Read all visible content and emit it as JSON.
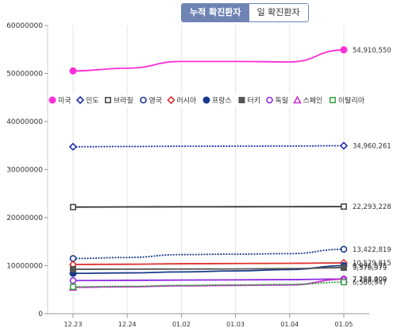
{
  "tabs": {
    "cumulative": "누적 확진환자",
    "daily": "일 확진환자"
  },
  "chart_data": {
    "type": "line",
    "title": "",
    "xlabel": "",
    "ylabel": "",
    "ylim": [
      0,
      60000000
    ],
    "yticks": [
      "0",
      "10000000",
      "20000000",
      "30000000",
      "40000000",
      "50000000",
      "60000000"
    ],
    "x": [
      "12.23",
      "12.24",
      "01.02",
      "01.03",
      "01.04",
      "01.05"
    ],
    "grid": "vertical",
    "legend": "inside-top",
    "series": [
      {
        "name": "미국",
        "color": "#ff2ed6",
        "marker": "filled-circle",
        "dash": "solid",
        "values": [
          50530000,
          51100000,
          52500000,
          52500000,
          52400000,
          54910550
        ],
        "end_label": "54,910,550"
      },
      {
        "name": "인도",
        "color": "#1f2fb0",
        "marker": "hollow-diamond",
        "dash": "dotted",
        "values": [
          34750000,
          34800000,
          34850000,
          34870000,
          34900000,
          34960261
        ],
        "end_label": "34,960,261"
      },
      {
        "name": "브라질",
        "color": "#333333",
        "marker": "hollow-square",
        "dash": "solid",
        "values": [
          22200000,
          22230000,
          22250000,
          22260000,
          22275000,
          22293228
        ],
        "end_label": "22,293,228"
      },
      {
        "name": "영국",
        "color": "#1a3a8a",
        "marker": "hollow-circle",
        "dash": "dotted",
        "values": [
          11500000,
          11700000,
          12300000,
          12400000,
          12500000,
          13422819
        ],
        "end_label": "13,422,819"
      },
      {
        "name": "러시아",
        "color": "#e03030",
        "marker": "hollow-diamond",
        "dash": "solid",
        "values": [
          10250000,
          10300000,
          10400000,
          10450000,
          10500000,
          10579815
        ],
        "end_label": "10,579,815"
      },
      {
        "name": "프랑스",
        "color": "#1a3a8a",
        "marker": "filled-circle",
        "dash": "solid",
        "values": [
          8400000,
          8500000,
          8700000,
          8900000,
          9200000,
          9996575
        ],
        "end_label": "9,996,575"
      },
      {
        "name": "터키",
        "color": "#555555",
        "marker": "filled-square",
        "dash": "solid",
        "values": [
          9250000,
          9280000,
          9300000,
          9320000,
          9400000,
          9576979
        ],
        "end_label": "9,576,979"
      },
      {
        "name": "독일",
        "color": "#8a2be2",
        "marker": "hollow-circle",
        "dash": "solid",
        "values": [
          6900000,
          6950000,
          7000000,
          7050000,
          7100000,
          7228409
        ],
        "end_label": "7,228,409"
      },
      {
        "name": "스페인",
        "color": "#cc33cc",
        "marker": "hollow-triangle",
        "dash": "solid",
        "values": [
          5500000,
          5600000,
          5800000,
          5900000,
          6000000,
          7164000
        ],
        "end_label": "7,164,000"
      },
      {
        "name": "이탈리아",
        "color": "#2a9d3a",
        "marker": "hollow-square",
        "dash": "dotted",
        "values": [
          5600000,
          5700000,
          5900000,
          6000000,
          6100000,
          6566947
        ],
        "end_label": "6,566,947"
      }
    ]
  }
}
